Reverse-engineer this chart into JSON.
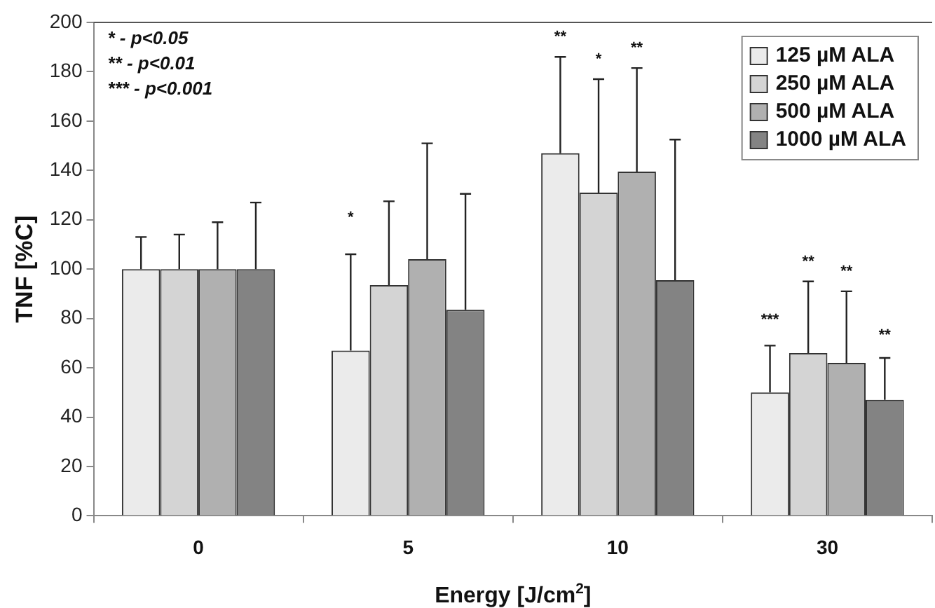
{
  "chart_data": {
    "type": "bar",
    "xlabel": "Energy [J/cm$^{2}$]",
    "ylabel": "TNF [%C]",
    "categories": [
      "0",
      "5",
      "10",
      "30"
    ],
    "series": [
      {
        "name": "125 µM ALA",
        "color": "#ebebeb",
        "values": [
          100,
          67,
          147,
          50
        ],
        "errors": [
          13,
          39,
          39,
          19
        ]
      },
      {
        "name": "250 µM ALA",
        "color": "#d4d4d4",
        "values": [
          100,
          93.5,
          131,
          66
        ],
        "errors": [
          14,
          34,
          46,
          29
        ]
      },
      {
        "name": "500 µM ALA",
        "color": "#b0b0b0",
        "values": [
          100,
          104,
          139.5,
          62
        ],
        "errors": [
          19,
          47,
          42,
          29
        ]
      },
      {
        "name": "1000 µM ALA",
        "color": "#838383",
        "values": [
          100,
          83.5,
          95.5,
          47
        ],
        "errors": [
          27,
          47,
          57,
          17
        ]
      }
    ],
    "ylim": [
      0,
      200
    ],
    "yticks": [
      0,
      20,
      40,
      60,
      80,
      100,
      120,
      140,
      160,
      180,
      200
    ],
    "grid": false,
    "legend": "top right",
    "annotations": [
      "* - p<0.05",
      "** - p<0.01",
      "*** - p<0.001",
      "*",
      "**",
      "*",
      "**",
      "***",
      "**",
      "**",
      "**"
    ]
  }
}
